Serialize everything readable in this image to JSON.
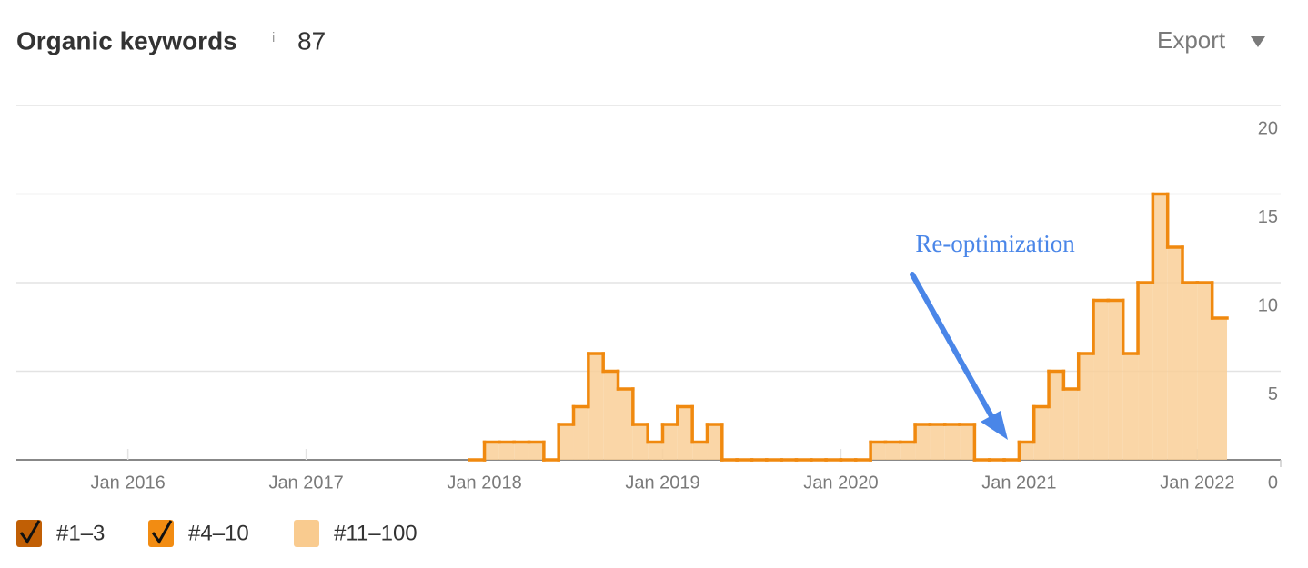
{
  "header": {
    "title": "Organic keywords",
    "info": "i",
    "count": "87",
    "export": "Export"
  },
  "chart_data": {
    "type": "step-area",
    "x": [
      "2017-12",
      "2018-01",
      "2018-02",
      "2018-03",
      "2018-04",
      "2018-05",
      "2018-06",
      "2018-07",
      "2018-08",
      "2018-09",
      "2018-10",
      "2018-11",
      "2018-12",
      "2019-01",
      "2019-02",
      "2019-03",
      "2019-04",
      "2019-05",
      "2019-06",
      "2019-07",
      "2019-08",
      "2019-09",
      "2019-10",
      "2019-11",
      "2019-12",
      "2020-01",
      "2020-02",
      "2020-03",
      "2020-04",
      "2020-05",
      "2020-06",
      "2020-07",
      "2020-08",
      "2020-09",
      "2020-10",
      "2020-11",
      "2020-12",
      "2021-01",
      "2021-02",
      "2021-03",
      "2021-04",
      "2021-05",
      "2021-06",
      "2021-07",
      "2021-08",
      "2021-09",
      "2021-10",
      "2021-11",
      "2021-12",
      "2022-01",
      "2022-02"
    ],
    "series": [
      {
        "name": "#11–100",
        "color": "#f9cf98",
        "line_color": "#f0890f",
        "values": [
          0,
          1,
          1,
          1,
          1,
          0,
          2,
          3,
          6,
          5,
          4,
          2,
          1,
          2,
          3,
          1,
          2,
          0,
          0,
          0,
          0,
          0,
          0,
          0,
          0,
          0,
          0,
          1,
          1,
          1,
          2,
          2,
          2,
          2,
          0,
          0,
          0,
          1,
          3,
          5,
          4,
          6,
          9,
          9,
          6,
          10,
          15,
          12,
          10,
          10,
          8
        ]
      }
    ],
    "legend": [
      {
        "name": "#1–3",
        "color": "#c15f05",
        "checked": true
      },
      {
        "name": "#4–10",
        "color": "#f28c12",
        "checked": true
      },
      {
        "name": "#11–100",
        "color": "#f9cb8f",
        "checked": false
      }
    ],
    "xlim": [
      "2015-05",
      "2022-06"
    ],
    "xticks": [
      {
        "value": "2016-01",
        "label": "Jan 2016"
      },
      {
        "value": "2017-01",
        "label": "Jan 2017"
      },
      {
        "value": "2018-01",
        "label": "Jan 2018"
      },
      {
        "value": "2019-01",
        "label": "Jan 2019"
      },
      {
        "value": "2020-01",
        "label": "Jan 2020"
      },
      {
        "value": "2021-01",
        "label": "Jan 2021"
      },
      {
        "value": "2022-01",
        "label": "Jan 2022"
      }
    ],
    "ylim": [
      0,
      20
    ],
    "yticks": [
      0,
      5,
      10,
      15,
      20
    ],
    "grid": true,
    "annotation": {
      "text": "Re-optimization",
      "x": "2020-12",
      "color": "#4a86e8"
    }
  }
}
